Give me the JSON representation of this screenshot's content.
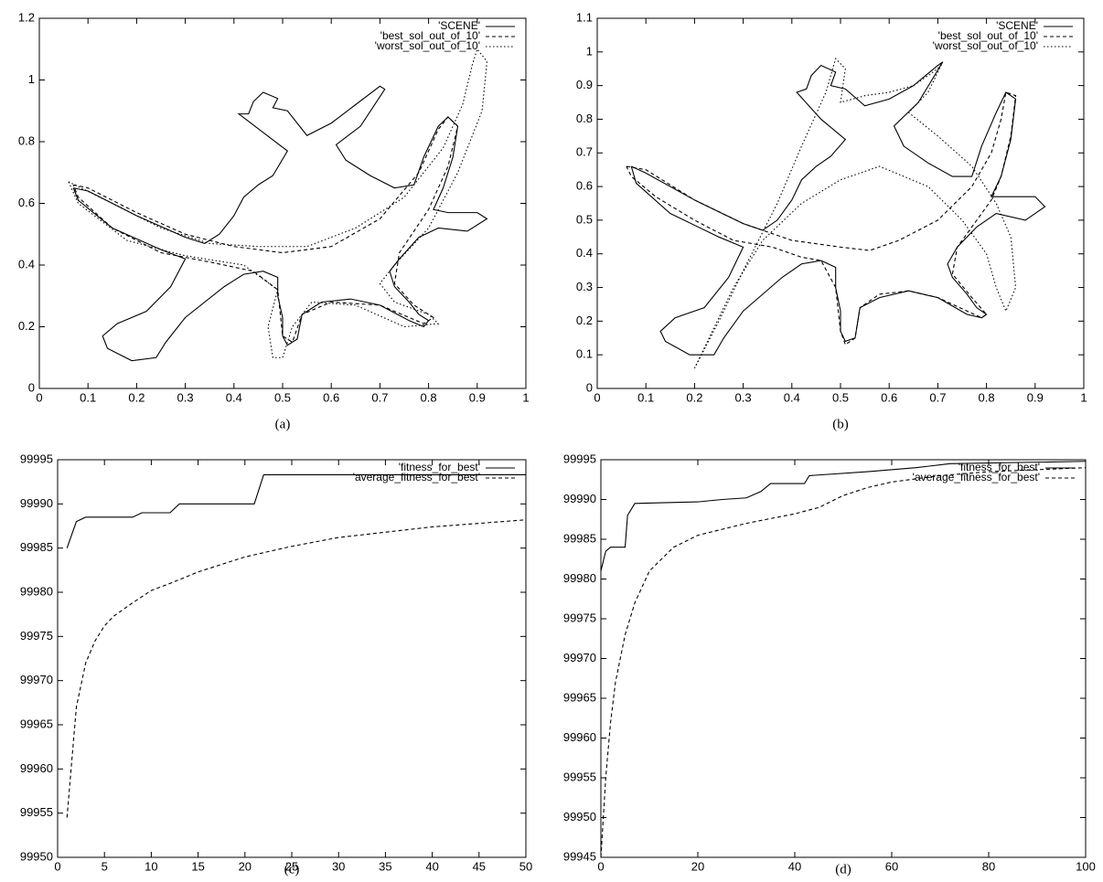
{
  "chart_data": [
    {
      "type": "line",
      "caption": "(a)",
      "xlim": [
        0,
        1
      ],
      "ylim": [
        0,
        1.2
      ],
      "xticks": [
        0,
        0.1,
        0.2,
        0.3,
        0.4,
        0.5,
        0.6,
        0.7,
        0.8,
        0.9,
        1
      ],
      "yticks": [
        0,
        0.2,
        0.4,
        0.6,
        0.8,
        1,
        1.2
      ],
      "legend": "upper right",
      "series": [
        {
          "name": "'SCENE'",
          "color": "#000000",
          "style": "solid",
          "x": [
            0.07,
            0.1,
            0.2,
            0.3,
            0.34,
            0.37,
            0.4,
            0.42,
            0.45,
            0.48,
            0.51,
            0.46,
            0.41,
            0.43,
            0.44,
            0.46,
            0.49,
            0.48,
            0.51,
            0.55,
            0.6,
            0.65,
            0.7,
            0.71,
            0.66,
            0.61,
            0.63,
            0.68,
            0.73,
            0.77,
            0.79,
            0.82,
            0.84,
            0.86,
            0.85,
            0.83,
            0.81,
            0.84,
            0.9,
            0.92,
            0.88,
            0.82,
            0.78,
            0.74,
            0.72,
            0.73,
            0.76,
            0.78,
            0.8,
            0.79,
            0.76,
            0.7,
            0.64,
            0.58,
            0.54,
            0.53,
            0.51,
            0.5,
            0.5,
            0.49,
            0.49,
            0.46,
            0.42,
            0.38,
            0.3,
            0.26,
            0.24,
            0.19,
            0.14,
            0.13,
            0.16,
            0.22,
            0.27,
            0.3,
            0.25,
            0.15,
            0.08,
            0.07
          ],
          "values": [
            0.65,
            0.64,
            0.56,
            0.49,
            0.47,
            0.5,
            0.56,
            0.62,
            0.66,
            0.69,
            0.77,
            0.83,
            0.89,
            0.89,
            0.93,
            0.96,
            0.94,
            0.91,
            0.9,
            0.82,
            0.86,
            0.92,
            0.98,
            0.97,
            0.85,
            0.79,
            0.74,
            0.69,
            0.65,
            0.66,
            0.75,
            0.85,
            0.88,
            0.85,
            0.75,
            0.65,
            0.58,
            0.57,
            0.57,
            0.55,
            0.51,
            0.52,
            0.49,
            0.42,
            0.38,
            0.33,
            0.28,
            0.24,
            0.22,
            0.2,
            0.22,
            0.27,
            0.29,
            0.28,
            0.24,
            0.16,
            0.14,
            0.17,
            0.23,
            0.3,
            0.36,
            0.38,
            0.37,
            0.33,
            0.23,
            0.15,
            0.1,
            0.09,
            0.13,
            0.17,
            0.21,
            0.25,
            0.33,
            0.42,
            0.45,
            0.52,
            0.61,
            0.65
          ]
        },
        {
          "name": "'best_sol_out_of_10'",
          "color": "#000000",
          "style": "dashed",
          "x": [
            0.07,
            0.1,
            0.2,
            0.3,
            0.4,
            0.5,
            0.6,
            0.7,
            0.78,
            0.82,
            0.84,
            0.86,
            0.84,
            0.8,
            0.74,
            0.73,
            0.77,
            0.81,
            0.79,
            0.7,
            0.6,
            0.54,
            0.52,
            0.5,
            0.49,
            0.44,
            0.35,
            0.25,
            0.15,
            0.08,
            0.07
          ],
          "values": [
            0.66,
            0.65,
            0.57,
            0.5,
            0.46,
            0.44,
            0.46,
            0.55,
            0.7,
            0.84,
            0.88,
            0.85,
            0.72,
            0.58,
            0.44,
            0.34,
            0.27,
            0.23,
            0.21,
            0.27,
            0.28,
            0.24,
            0.15,
            0.17,
            0.32,
            0.38,
            0.41,
            0.44,
            0.52,
            0.62,
            0.66
          ]
        },
        {
          "name": "'worst_sol_out_of_10'",
          "color": "#000000",
          "style": "dotted",
          "x": [
            0.06,
            0.15,
            0.25,
            0.35,
            0.45,
            0.55,
            0.65,
            0.75,
            0.83,
            0.87,
            0.89,
            0.9,
            0.92,
            0.91,
            0.86,
            0.8,
            0.73,
            0.7,
            0.73,
            0.8,
            0.82,
            0.75,
            0.65,
            0.56,
            0.52,
            0.5,
            0.48,
            0.47,
            0.49,
            0.42,
            0.3,
            0.18,
            0.08,
            0.06
          ],
          "values": [
            0.67,
            0.6,
            0.52,
            0.47,
            0.46,
            0.46,
            0.52,
            0.62,
            0.78,
            0.92,
            1.05,
            1.1,
            1.06,
            0.9,
            0.7,
            0.52,
            0.4,
            0.34,
            0.28,
            0.24,
            0.21,
            0.2,
            0.27,
            0.28,
            0.2,
            0.1,
            0.1,
            0.2,
            0.32,
            0.4,
            0.43,
            0.48,
            0.6,
            0.67
          ]
        }
      ]
    },
    {
      "type": "line",
      "caption": "(b)",
      "xlim": [
        0,
        1
      ],
      "ylim": [
        0,
        1.1
      ],
      "xticks": [
        0,
        0.1,
        0.2,
        0.3,
        0.4,
        0.5,
        0.6,
        0.7,
        0.8,
        0.9,
        1
      ],
      "yticks": [
        0,
        0.1,
        0.2,
        0.3,
        0.4,
        0.5,
        0.6,
        0.7,
        0.8,
        0.9,
        1,
        1.1
      ],
      "legend": "upper right",
      "series": [
        {
          "name": "'SCENE'",
          "color": "#000000",
          "style": "solid",
          "x": [
            0.07,
            0.1,
            0.2,
            0.3,
            0.34,
            0.37,
            0.4,
            0.42,
            0.45,
            0.48,
            0.51,
            0.46,
            0.41,
            0.43,
            0.44,
            0.46,
            0.49,
            0.48,
            0.51,
            0.55,
            0.6,
            0.65,
            0.7,
            0.71,
            0.66,
            0.61,
            0.63,
            0.68,
            0.73,
            0.77,
            0.79,
            0.82,
            0.84,
            0.86,
            0.85,
            0.83,
            0.81,
            0.84,
            0.9,
            0.92,
            0.88,
            0.82,
            0.78,
            0.74,
            0.72,
            0.73,
            0.76,
            0.78,
            0.8,
            0.79,
            0.76,
            0.7,
            0.64,
            0.58,
            0.54,
            0.53,
            0.51,
            0.5,
            0.5,
            0.49,
            0.49,
            0.46,
            0.42,
            0.38,
            0.3,
            0.26,
            0.24,
            0.19,
            0.14,
            0.13,
            0.16,
            0.22,
            0.27,
            0.3,
            0.25,
            0.15,
            0.08,
            0.07
          ],
          "values": [
            0.66,
            0.64,
            0.56,
            0.49,
            0.47,
            0.5,
            0.56,
            0.62,
            0.66,
            0.69,
            0.74,
            0.8,
            0.88,
            0.89,
            0.93,
            0.96,
            0.94,
            0.9,
            0.89,
            0.84,
            0.86,
            0.9,
            0.96,
            0.97,
            0.85,
            0.78,
            0.72,
            0.67,
            0.63,
            0.63,
            0.72,
            0.82,
            0.88,
            0.86,
            0.74,
            0.63,
            0.57,
            0.57,
            0.57,
            0.54,
            0.5,
            0.52,
            0.48,
            0.42,
            0.37,
            0.33,
            0.28,
            0.24,
            0.22,
            0.21,
            0.22,
            0.27,
            0.29,
            0.27,
            0.24,
            0.15,
            0.14,
            0.17,
            0.23,
            0.3,
            0.36,
            0.38,
            0.37,
            0.33,
            0.23,
            0.15,
            0.1,
            0.1,
            0.14,
            0.17,
            0.21,
            0.24,
            0.33,
            0.42,
            0.45,
            0.52,
            0.61,
            0.66
          ]
        },
        {
          "name": "'best_sol_out_of_10'",
          "color": "#000000",
          "style": "dashed",
          "x": [
            0.06,
            0.1,
            0.2,
            0.3,
            0.4,
            0.5,
            0.56,
            0.62,
            0.7,
            0.77,
            0.81,
            0.83,
            0.84,
            0.86,
            0.85,
            0.83,
            0.81,
            0.78,
            0.74,
            0.73,
            0.77,
            0.8,
            0.79,
            0.7,
            0.64,
            0.58,
            0.54,
            0.53,
            0.51,
            0.5,
            0.49,
            0.46,
            0.42,
            0.36,
            0.28,
            0.2,
            0.12,
            0.07,
            0.06
          ],
          "values": [
            0.66,
            0.65,
            0.56,
            0.49,
            0.44,
            0.42,
            0.41,
            0.44,
            0.5,
            0.6,
            0.7,
            0.8,
            0.88,
            0.87,
            0.75,
            0.63,
            0.56,
            0.5,
            0.42,
            0.34,
            0.27,
            0.22,
            0.21,
            0.27,
            0.29,
            0.28,
            0.24,
            0.15,
            0.13,
            0.17,
            0.3,
            0.38,
            0.39,
            0.42,
            0.44,
            0.5,
            0.57,
            0.63,
            0.66
          ]
        },
        {
          "name": "'worst_sol_out_of_10'",
          "color": "#000000",
          "style": "dotted",
          "x": [
            0.2,
            0.25,
            0.3,
            0.37,
            0.42,
            0.47,
            0.49,
            0.51,
            0.5,
            0.55,
            0.6,
            0.65,
            0.7,
            0.71,
            0.68,
            0.64,
            0.7,
            0.77,
            0.82,
            0.85,
            0.86,
            0.84,
            0.82,
            0.8,
            0.75,
            0.68,
            0.58,
            0.5,
            0.42,
            0.34,
            0.28,
            0.23,
            0.2
          ],
          "values": [
            0.06,
            0.2,
            0.35,
            0.55,
            0.72,
            0.88,
            0.98,
            0.95,
            0.85,
            0.87,
            0.88,
            0.9,
            0.95,
            0.97,
            0.88,
            0.82,
            0.75,
            0.66,
            0.55,
            0.45,
            0.3,
            0.23,
            0.3,
            0.4,
            0.5,
            0.6,
            0.66,
            0.62,
            0.55,
            0.44,
            0.3,
            0.15,
            0.06
          ]
        }
      ]
    },
    {
      "type": "line",
      "caption": "(c)",
      "xlim": [
        0,
        50
      ],
      "ylim": [
        99950,
        99995
      ],
      "xticks": [
        0,
        5,
        10,
        15,
        20,
        25,
        30,
        35,
        40,
        45,
        50
      ],
      "yticks": [
        99950,
        99955,
        99960,
        99965,
        99970,
        99975,
        99980,
        99985,
        99990,
        99995
      ],
      "legend": "upper right",
      "series": [
        {
          "name": "'fitness_for_best'",
          "color": "#000000",
          "style": "solid",
          "x": [
            1,
            2,
            3,
            8,
            9,
            12,
            13,
            21,
            22,
            50
          ],
          "values": [
            99985,
            99988,
            99988.5,
            99988.5,
            99989,
            99989,
            99990,
            99990,
            99993.3,
            99993.3
          ]
        },
        {
          "name": "'average_fitness_for_best'",
          "color": "#000000",
          "style": "dashed",
          "x": [
            1,
            2,
            3,
            4,
            5,
            6,
            8,
            10,
            12,
            15,
            20,
            25,
            30,
            35,
            40,
            45,
            50
          ],
          "values": [
            99954.5,
            99967,
            99972,
            99974.5,
            99976.2,
            99977.3,
            99978.8,
            99980.2,
            99981,
            99982.3,
            99984,
            99985.2,
            99986.2,
            99986.8,
            99987.4,
            99987.8,
            99988.2
          ]
        }
      ]
    },
    {
      "type": "line",
      "caption": "(d)",
      "xlim": [
        0,
        100
      ],
      "ylim": [
        99945,
        99995
      ],
      "xticks": [
        0,
        20,
        40,
        60,
        80,
        100
      ],
      "yticks": [
        99945,
        99950,
        99955,
        99960,
        99965,
        99970,
        99975,
        99980,
        99985,
        99990,
        99995
      ],
      "legend": "upper right",
      "series": [
        {
          "name": "'fitness_for_best'",
          "color": "#000000",
          "style": "solid",
          "x": [
            0,
            1,
            2,
            5,
            5.5,
            6,
            7,
            20,
            25,
            30,
            33,
            35,
            42,
            43,
            55,
            65,
            72,
            100
          ],
          "values": [
            99981,
            99983.5,
            99984,
            99984,
            99988,
            99988.5,
            99989.5,
            99989.7,
            99990,
            99990.2,
            99991,
            99992,
            99992,
            99993,
            99993.5,
            99994,
            99994.5,
            99994.8
          ]
        },
        {
          "name": "'average_fitness_for_best'",
          "color": "#000000",
          "style": "dashed",
          "x": [
            0,
            1,
            2,
            3,
            5,
            7,
            10,
            15,
            20,
            30,
            40,
            45,
            50,
            55,
            60,
            70,
            80,
            100
          ],
          "values": [
            99945,
            99955,
            99962,
            99967,
            99973,
            99977,
            99981,
            99984,
            99985.5,
            99987,
            99988.2,
            99989,
            99990.5,
            99991.5,
            99992.2,
            99993,
            99993.5,
            99994
          ]
        }
      ]
    }
  ]
}
